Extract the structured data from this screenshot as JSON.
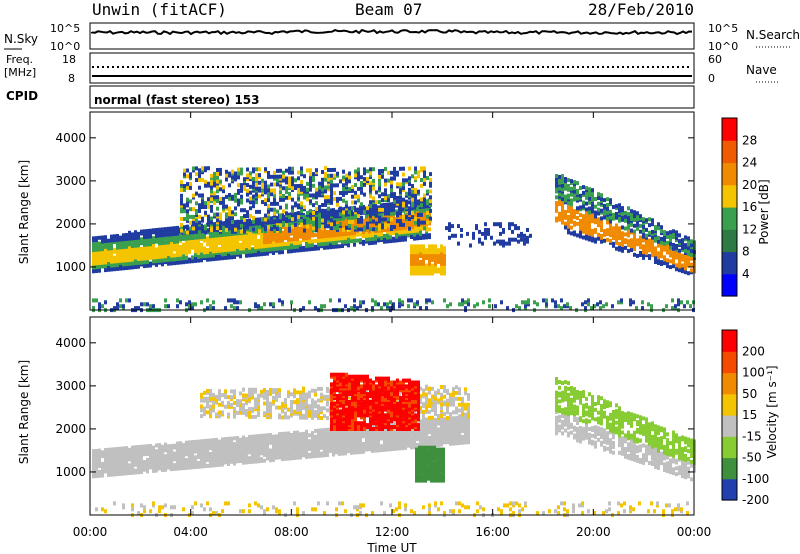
{
  "header": {
    "title": "Unwin (fitACF)",
    "beam": "Beam 07",
    "date": "28/Feb/2010"
  },
  "noise_panel": {
    "left_label": "N.Sky",
    "left_ticks": [
      "10^5",
      "10^0"
    ],
    "right_label": "N.Search",
    "right_ticks": [
      "10^5",
      "10^0"
    ]
  },
  "freq_panel": {
    "left_label": "Freq.",
    "left_unit": "[MHz]",
    "left_ticks": [
      "18",
      "8"
    ],
    "right_label": "Nave",
    "right_ticks": [
      "60",
      "0"
    ]
  },
  "cpid": {
    "label": "CPID",
    "mode": "normal (fast stereo) 153"
  },
  "colors": {
    "power_scale": [
      "#0000ff",
      "#203ca0",
      "#2d7a44",
      "#3aa050",
      "#f4c400",
      "#f08a00",
      "#f05a00",
      "#ff0000"
    ],
    "velocity_scale": [
      "#ff0000",
      "#f54a00",
      "#f08a00",
      "#f4c400",
      "#c0c0c0",
      "#88cc33",
      "#3e8f3e",
      "#2040b0"
    ]
  },
  "chart_data": [
    {
      "type": "heatmap",
      "name": "power",
      "ylabel": "Slant Range [km]",
      "y_ticks": [
        "1000",
        "2000",
        "3000",
        "4000"
      ],
      "ylim": [
        0,
        4600
      ],
      "xlim": [
        "00:00",
        "24:00"
      ],
      "colorbar": {
        "label": "Power [dB]",
        "ticks": [
          "4",
          "8",
          "12",
          "16",
          "20",
          "24",
          "28"
        ],
        "range": [
          0,
          32
        ]
      }
    },
    {
      "type": "heatmap",
      "name": "velocity",
      "ylabel": "Slant Range [km]",
      "y_ticks": [
        "1000",
        "2000",
        "3000",
        "4000"
      ],
      "ylim": [
        0,
        4600
      ],
      "xlim": [
        "00:00",
        "24:00"
      ],
      "xlabel": "Time UT",
      "x_ticks": [
        "00:00",
        "04:00",
        "08:00",
        "12:00",
        "16:00",
        "20:00",
        "00:00"
      ],
      "colorbar": {
        "label": "Velocity [m s⁻¹]",
        "ticks": [
          "200",
          "100",
          "50",
          "15",
          "-15",
          "-50",
          "-100",
          "-200"
        ]
      }
    }
  ]
}
